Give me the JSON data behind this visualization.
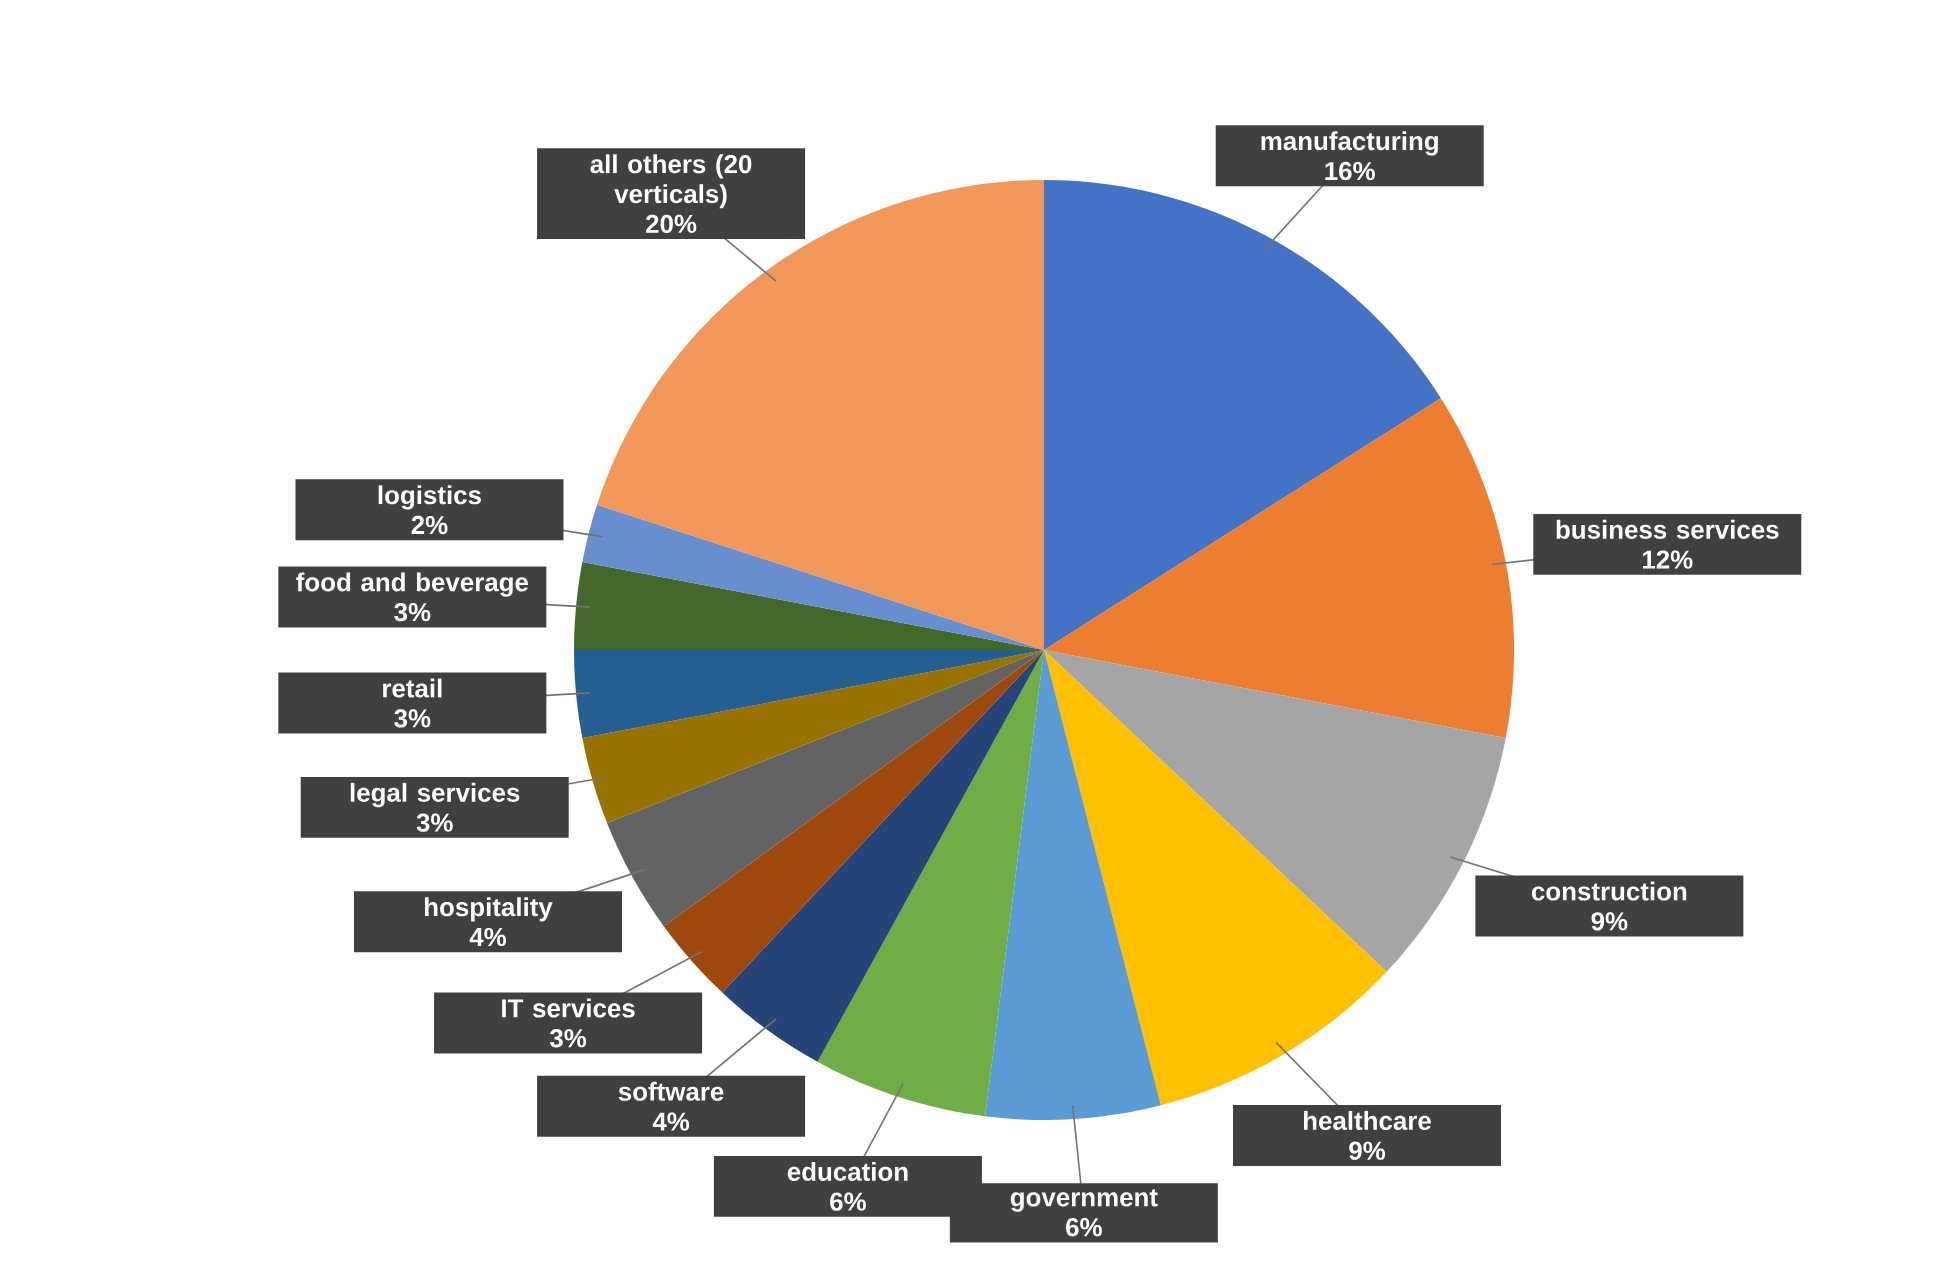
{
  "chart_data": {
    "type": "pie",
    "categories": [
      "manufacturing",
      "business services",
      "construction",
      "healthcare",
      "government",
      "education",
      "software",
      "IT services",
      "hospitality",
      "legal services",
      "retail",
      "food and beverage",
      "logistics",
      "all others (20 verticals)"
    ],
    "values": [
      16,
      12,
      9,
      9,
      6,
      6,
      4,
      3,
      4,
      3,
      3,
      3,
      2,
      20
    ],
    "value_labels": [
      "16%",
      "12%",
      "9%",
      "9%",
      "6%",
      "6%",
      "4%",
      "3%",
      "4%",
      "3%",
      "3%",
      "3%",
      "2%",
      "20%"
    ],
    "colors": [
      "#4472c4",
      "#ed7d31",
      "#a5a5a5",
      "#ffc000",
      "#5b9bd5",
      "#70ad47",
      "#264478",
      "#9e480e",
      "#636363",
      "#997300",
      "#255e91",
      "#43682b",
      "#698ed0",
      "#f1975a"
    ]
  }
}
